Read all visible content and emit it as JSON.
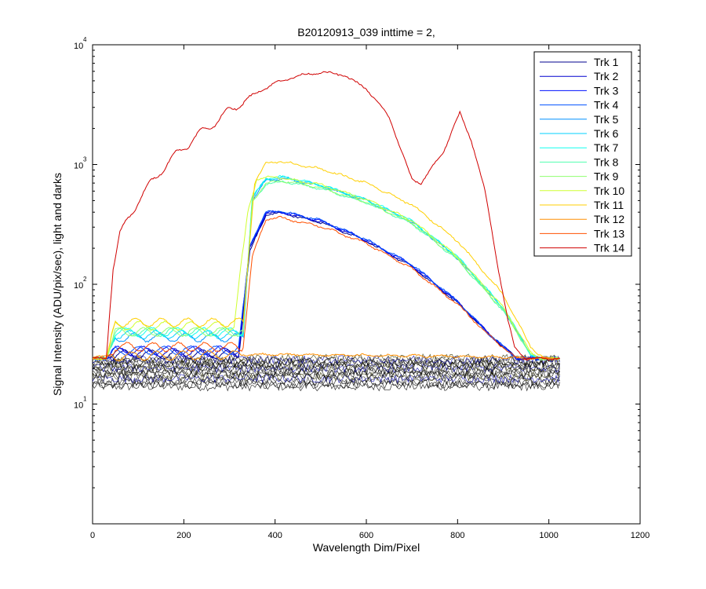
{
  "chart_data": {
    "type": "line",
    "title": "B20120913_039 inttime = 2,",
    "xlabel": "Wavelength Dim/Pixel",
    "ylabel": "Signal Intensity (ADU/pix/sec), light and darks",
    "xlim": [
      0,
      1200
    ],
    "ylim": [
      1,
      10000
    ],
    "yscale": "log",
    "x_ticks": [
      "0",
      "200",
      "400",
      "600",
      "800",
      "1000",
      "1200"
    ],
    "y_ticks": [
      {
        "base": "10",
        "exp": "1",
        "value": 10
      },
      {
        "base": "10",
        "exp": "2",
        "value": 100
      },
      {
        "base": "10",
        "exp": "3",
        "value": 1000
      },
      {
        "base": "10",
        "exp": "4",
        "value": 10000
      }
    ],
    "grid": false,
    "legend_position": "top-right",
    "series": [
      {
        "name": "Trk 1",
        "color": "#00008f",
        "x": [
          0,
          30,
          50,
          320,
          345,
          380,
          410,
          500,
          600,
          700,
          800,
          870,
          930,
          945,
          1024
        ],
        "y": [
          24,
          24,
          26,
          26,
          190,
          380,
          395,
          330,
          230,
          140,
          70,
          38,
          24,
          24,
          24
        ]
      },
      {
        "name": "Trk 2",
        "color": "#0000cf",
        "x": [
          0,
          30,
          50,
          320,
          345,
          380,
          410,
          500,
          600,
          700,
          800,
          870,
          930,
          945,
          1024
        ],
        "y": [
          24,
          24,
          27,
          27,
          200,
          390,
          400,
          335,
          232,
          142,
          71,
          38,
          24,
          24,
          24
        ]
      },
      {
        "name": "Trk 3",
        "color": "#0010ff",
        "x": [
          0,
          30,
          50,
          320,
          345,
          380,
          410,
          500,
          600,
          700,
          800,
          870,
          930,
          945,
          1024
        ],
        "y": [
          24,
          24,
          28,
          28,
          210,
          395,
          405,
          340,
          235,
          145,
          72,
          38,
          24,
          24,
          24
        ]
      },
      {
        "name": "Trk 4",
        "color": "#0050ff",
        "x": [
          0,
          30,
          50,
          320,
          345,
          380,
          410,
          500,
          600,
          700,
          800,
          870,
          930,
          945,
          1024
        ],
        "y": [
          24,
          24,
          28,
          28,
          215,
          400,
          410,
          342,
          236,
          146,
          72,
          38,
          24,
          24,
          24
        ]
      },
      {
        "name": "Trk 5",
        "color": "#0090ff",
        "x": [
          0,
          30,
          50,
          330,
          350,
          380,
          420,
          500,
          600,
          700,
          800,
          900,
          960,
          980,
          1024
        ],
        "y": [
          24,
          24,
          36,
          36,
          500,
          740,
          760,
          660,
          500,
          330,
          165,
          62,
          26,
          24,
          24
        ]
      },
      {
        "name": "Trk 6",
        "color": "#00d0ff",
        "x": [
          0,
          30,
          50,
          330,
          350,
          380,
          420,
          500,
          600,
          700,
          800,
          900,
          960,
          980,
          1024
        ],
        "y": [
          24,
          24,
          38,
          38,
          520,
          760,
          780,
          670,
          505,
          335,
          168,
          63,
          26,
          24,
          24
        ]
      },
      {
        "name": "Trk 7",
        "color": "#10ffef",
        "x": [
          0,
          30,
          50,
          330,
          350,
          380,
          420,
          500,
          600,
          700,
          800,
          900,
          960,
          980,
          1024
        ],
        "y": [
          24,
          24,
          40,
          40,
          530,
          770,
          790,
          675,
          510,
          340,
          170,
          64,
          26,
          24,
          24
        ]
      },
      {
        "name": "Trk 8",
        "color": "#50ffaf",
        "x": [
          0,
          30,
          50,
          330,
          350,
          380,
          420,
          500,
          600,
          700,
          800,
          900,
          960,
          980,
          1024
        ],
        "y": [
          24,
          24,
          40,
          40,
          480,
          690,
          720,
          630,
          480,
          320,
          160,
          60,
          26,
          24,
          24
        ]
      },
      {
        "name": "Trk 9",
        "color": "#90ff6f",
        "x": [
          0,
          30,
          50,
          330,
          350,
          380,
          420,
          500,
          600,
          700,
          800,
          900,
          960,
          980,
          1024
        ],
        "y": [
          24,
          24,
          40,
          40,
          490,
          700,
          730,
          640,
          485,
          325,
          162,
          61,
          26,
          24,
          24
        ]
      },
      {
        "name": "Trk 10",
        "color": "#cfff30",
        "x": [
          0,
          30,
          50,
          310,
          340,
          360,
          400,
          500,
          600,
          700,
          800,
          900,
          960,
          980,
          1024
        ],
        "y": [
          24,
          24,
          45,
          45,
          400,
          760,
          790,
          680,
          510,
          340,
          170,
          64,
          27,
          24,
          24
        ]
      },
      {
        "name": "Trk 11",
        "color": "#ffcf00",
        "x": [
          0,
          30,
          50,
          330,
          355,
          380,
          410,
          500,
          600,
          700,
          800,
          900,
          960,
          990,
          1024
        ],
        "y": [
          24,
          24,
          48,
          48,
          700,
          1030,
          1060,
          920,
          700,
          460,
          230,
          82,
          30,
          24,
          24
        ]
      },
      {
        "name": "Trk 12",
        "color": "#ff8f00",
        "x": [
          0,
          400,
          800,
          1024
        ],
        "y": [
          25,
          26,
          25,
          24
        ]
      },
      {
        "name": "Trk 13",
        "color": "#ff5000",
        "x": [
          0,
          30,
          50,
          330,
          350,
          380,
          410,
          500,
          600,
          700,
          800,
          870,
          930,
          945,
          1024
        ],
        "y": [
          24,
          24,
          30,
          30,
          170,
          350,
          360,
          305,
          220,
          135,
          68,
          37,
          24,
          24,
          24
        ]
      },
      {
        "name": "Trk 14",
        "color": "#d00000",
        "x": [
          0,
          30,
          45,
          60,
          100,
          150,
          200,
          250,
          300,
          350,
          400,
          450,
          500,
          550,
          600,
          650,
          680,
          700,
          720,
          740,
          770,
          790,
          805,
          830,
          860,
          890,
          910,
          925,
          950,
          1024
        ],
        "y": [
          24,
          24,
          140,
          260,
          500,
          900,
          1400,
          2000,
          2800,
          3800,
          4800,
          5500,
          5900,
          5600,
          4300,
          2500,
          1200,
          750,
          700,
          900,
          1300,
          2000,
          2700,
          1600,
          600,
          130,
          50,
          30,
          24,
          24
        ]
      }
    ]
  }
}
